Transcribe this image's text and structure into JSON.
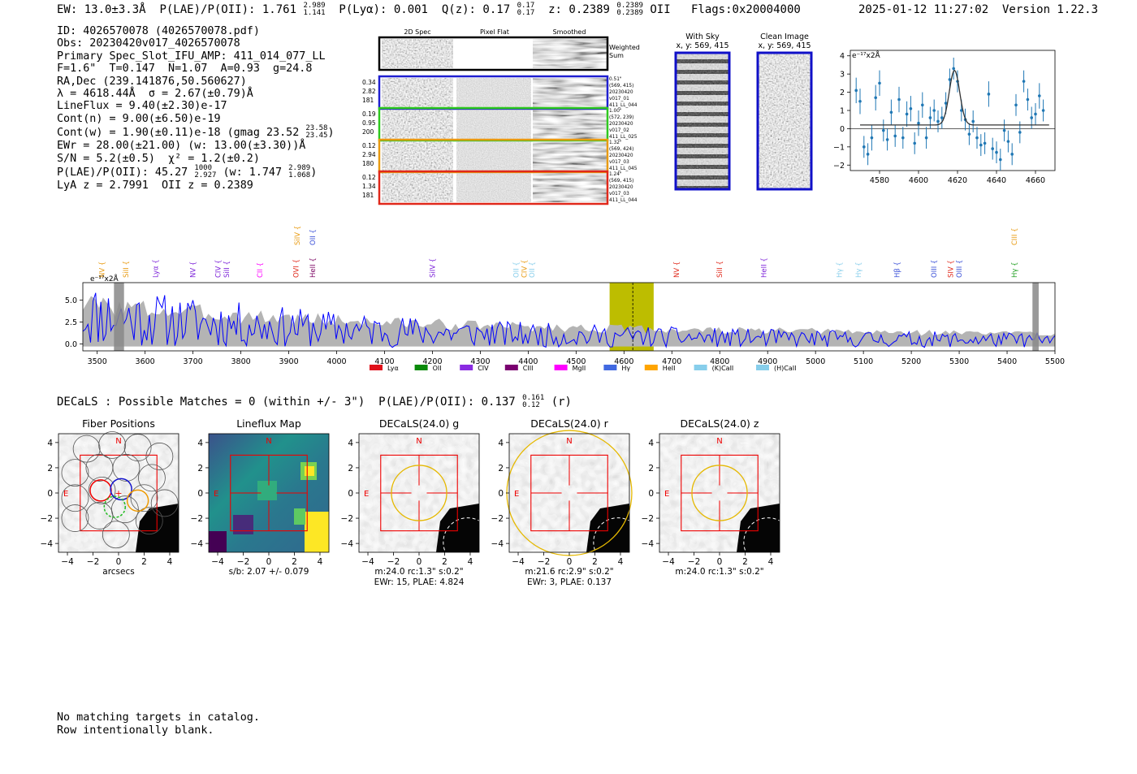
{
  "header": {
    "ew": "EW: 13.0±3.3Å",
    "plae_poii": "P(LAE)/P(OII): 1.761",
    "plae_poii_hi": "2.989",
    "plae_poii_lo": "1.141",
    "plya": "P(Lyα): 0.001",
    "qz": "Q(z): 0.17",
    "qz_hi": "0.17",
    "qz_lo": "0.17",
    "z": "z: 0.2389",
    "z_hi": "0.2389",
    "z_lo": "0.2389",
    "line": "OII",
    "flags": "Flags:0x20004000",
    "timestamp": "2025-01-12 11:27:02  Version 1.22.3"
  },
  "info": {
    "id": "ID: 4026570078 (4026570078.pdf)",
    "obs": "Obs: 20230420v017_4026570078",
    "primary": "Primary Spec_Slot_IFU_AMP: 411_014_077_LL",
    "fiber": "F=1.6\"  T=0.147  N=1.07  A=0.93  g=24.8",
    "radec": "RA,Dec (239.141876,50.560627)",
    "lambda": "λ = 4618.44Å  σ = 2.67(±0.79)Å",
    "lineflux": "LineFlux = 9.40(±2.30)e-17",
    "contn": "Cont(n) = 9.00(±6.50)e-19",
    "contw": "Cont(w) = 1.90(±0.11)e-18 (gmag 23.52",
    "contw_hi": "23.58",
    "contw_lo": "23.45",
    "ewr": "EWr = 28.00(±21.00) (w: 13.00(±3.30))Å",
    "sn": "S/N = 5.2(±0.5)  χ² = 1.2(±0.2)",
    "plae": "P(LAE)/P(OII): 45.27",
    "plae_hi": "1000",
    "plae_lo": "2.927",
    "plae_w": "(w: 1.747",
    "plae_w_hi": "2.989",
    "plae_w_lo": "1.068",
    "lya": "LyA z = 2.7991  OII z = 0.2389"
  },
  "cutouts": {
    "col_2d": "2D Spec",
    "col_flat": "Pixel Flat",
    "col_smooth": "Smoothed",
    "weighted": "Weighted",
    "sum": "Sum",
    "rows": [
      {
        "w1": "0.34",
        "w2": "2.82",
        "w3": "181",
        "color": "#1f1fd0",
        "info": [
          "0.51\"",
          "(569, 415)",
          "20230420",
          "v017_01",
          "411_LL_044"
        ]
      },
      {
        "w1": "0.19",
        "w2": "0.95",
        "w3": "200",
        "color": "#2fc81f",
        "info": [
          "1.00\"",
          "(572, 239)",
          "20230420",
          "v017_02",
          "411_LL_025"
        ]
      },
      {
        "w1": "0.12",
        "w2": "2.94",
        "w3": "180",
        "color": "#e89a10",
        "info": [
          "1.32\"",
          "(569, 424)",
          "20230420",
          "v017_03",
          "411_LL_045"
        ]
      },
      {
        "w1": "0.12",
        "w2": "1.34",
        "w3": "181",
        "color": "#e0281a",
        "info": [
          "1.24\"",
          "(569, 415)",
          "20230420",
          "v017_03",
          "411_LL_044"
        ]
      }
    ],
    "with_sky": "With Sky",
    "with_sky_xy": "x, y: 569, 415",
    "clean": "Clean Image",
    "clean_xy": "x, y: 569, 415"
  },
  "zoom_plot": {
    "unit": "e⁻¹⁷x2Å",
    "xticks": [
      "4580",
      "4600",
      "4620",
      "4640",
      "4660"
    ],
    "yticks": [
      "4",
      "3",
      "2",
      "1",
      "0",
      "−1",
      "−2"
    ]
  },
  "chart_data": [
    {
      "type": "scatter",
      "title": "",
      "unit_label": "e⁻¹⁷x2Å",
      "xlim": [
        4565,
        4670
      ],
      "ylim": [
        -2.3,
        4.3
      ],
      "points": [
        {
          "x": 4568,
          "y": 2.1,
          "err": 0.7
        },
        {
          "x": 4570,
          "y": 1.5,
          "err": 0.7
        },
        {
          "x": 4572,
          "y": -1.0,
          "err": 0.6
        },
        {
          "x": 4574,
          "y": -1.4,
          "err": 0.6
        },
        {
          "x": 4576,
          "y": -0.5,
          "err": 0.7
        },
        {
          "x": 4578,
          "y": 1.7,
          "err": 0.7
        },
        {
          "x": 4580,
          "y": 2.5,
          "err": 0.7
        },
        {
          "x": 4582,
          "y": -0.1,
          "err": 0.6
        },
        {
          "x": 4584,
          "y": -0.6,
          "err": 0.6
        },
        {
          "x": 4586,
          "y": 0.9,
          "err": 0.7
        },
        {
          "x": 4588,
          "y": -0.4,
          "err": 0.6
        },
        {
          "x": 4590,
          "y": 1.6,
          "err": 0.7
        },
        {
          "x": 4592,
          "y": -0.5,
          "err": 0.6
        },
        {
          "x": 4594,
          "y": 0.8,
          "err": 0.7
        },
        {
          "x": 4596,
          "y": 1.1,
          "err": 0.7
        },
        {
          "x": 4598,
          "y": -0.8,
          "err": 0.6
        },
        {
          "x": 4600,
          "y": 0.3,
          "err": 0.7
        },
        {
          "x": 4602,
          "y": 1.3,
          "err": 0.7
        },
        {
          "x": 4604,
          "y": -0.5,
          "err": 0.6
        },
        {
          "x": 4606,
          "y": 0.6,
          "err": 0.6
        },
        {
          "x": 4608,
          "y": 1.0,
          "err": 0.6
        },
        {
          "x": 4610,
          "y": 0.4,
          "err": 0.6
        },
        {
          "x": 4612,
          "y": 0.6,
          "err": 0.6
        },
        {
          "x": 4614,
          "y": 1.4,
          "err": 0.6
        },
        {
          "x": 4616,
          "y": 2.7,
          "err": 0.6
        },
        {
          "x": 4618,
          "y": 3.3,
          "err": 0.6
        },
        {
          "x": 4620,
          "y": 2.6,
          "err": 0.6
        },
        {
          "x": 4622,
          "y": 1.0,
          "err": 0.6
        },
        {
          "x": 4624,
          "y": 0.5,
          "err": 0.6
        },
        {
          "x": 4626,
          "y": -0.3,
          "err": 0.6
        },
        {
          "x": 4628,
          "y": 0.4,
          "err": 0.6
        },
        {
          "x": 4630,
          "y": -0.5,
          "err": 0.6
        },
        {
          "x": 4632,
          "y": -0.9,
          "err": 0.6
        },
        {
          "x": 4634,
          "y": -0.8,
          "err": 0.6
        },
        {
          "x": 4636,
          "y": 1.9,
          "err": 0.7
        },
        {
          "x": 4638,
          "y": -1.1,
          "err": 0.6
        },
        {
          "x": 4640,
          "y": -1.3,
          "err": 0.6
        },
        {
          "x": 4642,
          "y": -1.7,
          "err": 0.6
        },
        {
          "x": 4644,
          "y": -0.1,
          "err": 0.6
        },
        {
          "x": 4646,
          "y": -0.7,
          "err": 0.6
        },
        {
          "x": 4648,
          "y": -1.4,
          "err": 0.6
        },
        {
          "x": 4650,
          "y": 1.3,
          "err": 0.6
        },
        {
          "x": 4652,
          "y": -0.2,
          "err": 0.6
        },
        {
          "x": 4654,
          "y": 2.6,
          "err": 0.6
        },
        {
          "x": 4656,
          "y": 1.6,
          "err": 0.6
        },
        {
          "x": 4658,
          "y": 0.6,
          "err": 0.6
        },
        {
          "x": 4660,
          "y": 0.8,
          "err": 0.6
        },
        {
          "x": 4662,
          "y": 1.8,
          "err": 0.7
        },
        {
          "x": 4664,
          "y": 1.0,
          "err": 0.6
        }
      ],
      "fit": {
        "center": 4618.44,
        "sigma": 2.67,
        "amp": 3.0,
        "baseline": 0.2,
        "x_start": 4570,
        "x_end": 4667
      }
    },
    {
      "type": "line",
      "title": "",
      "unit_label": "e⁻¹⁷x2Å",
      "xlim": [
        3470,
        5500
      ],
      "ylim": [
        -0.8,
        7.0
      ],
      "xticks": [
        3500,
        3600,
        3700,
        3800,
        3900,
        4000,
        4100,
        4200,
        4300,
        4400,
        4500,
        4600,
        4700,
        4800,
        4900,
        5000,
        5100,
        5200,
        5300,
        5400,
        5500
      ],
      "yticks": [
        0.0,
        2.5,
        5.0
      ],
      "highlight_band": [
        4570,
        4662
      ],
      "line_marker": 4618.44,
      "masked_regions": [
        [
          3535,
          3556
        ],
        [
          5453,
          5466
        ]
      ],
      "series": [
        {
          "color": "#0000ff",
          "seed": 11,
          "start": 3470,
          "end": 5500,
          "n": 380,
          "base": 1.4,
          "amp": 6.2,
          "decay": 650
        },
        {
          "color": "#b4b4b4",
          "seed": 3,
          "start": 3470,
          "end": 5500,
          "n": 240,
          "base": 1.3,
          "amp": 4.6,
          "decay": 700
        }
      ],
      "line_labels": [
        {
          "text": "NV",
          "x": 3510,
          "row": 2,
          "color": "#e89a10"
        },
        {
          "text": "SiII",
          "x": 3560,
          "row": 2,
          "color": "#e89a10"
        },
        {
          "text": "Lyα",
          "x": 3622,
          "row": 2,
          "color": "#7b20d8"
        },
        {
          "text": "NV",
          "x": 3700,
          "row": 2,
          "color": "#7b20d8"
        },
        {
          "text": "CIV",
          "x": 3752,
          "row": 2,
          "color": "#7b20d8"
        },
        {
          "text": "SiII",
          "x": 3770,
          "row": 2,
          "color": "#7b20d8"
        },
        {
          "text": "CII",
          "x": 3840,
          "row": 2,
          "color": "#ff00ff"
        },
        {
          "text": "SiIV",
          "x": 3918,
          "row": 1,
          "color": "#e89a10"
        },
        {
          "text": "OII",
          "x": 3950,
          "row": 1,
          "color": "#3a50d8"
        },
        {
          "text": "OVI",
          "x": 3915,
          "row": 2,
          "color": "#e0281a"
        },
        {
          "text": "HeII",
          "x": 3950,
          "row": 2,
          "color": "#7a0060"
        },
        {
          "text": "SiIV",
          "x": 4200,
          "row": 2,
          "color": "#7b20d8"
        },
        {
          "text": "OII",
          "x": 4375,
          "row": 2,
          "color": "#87ceeb"
        },
        {
          "text": "CIV",
          "x": 4392,
          "row": 2,
          "color": "#e89a10"
        },
        {
          "text": "OII",
          "x": 4408,
          "row": 2,
          "color": "#87ceeb"
        },
        {
          "text": "NV",
          "x": 4710,
          "row": 2,
          "color": "#e0281a"
        },
        {
          "text": "SiII",
          "x": 4800,
          "row": 2,
          "color": "#e0281a"
        },
        {
          "text": "HeII",
          "x": 4892,
          "row": 2,
          "color": "#7b20d8"
        },
        {
          "text": "Hγ",
          "x": 5050,
          "row": 2,
          "color": "#87ceeb"
        },
        {
          "text": "Hγ",
          "x": 5090,
          "row": 2,
          "color": "#87ceeb"
        },
        {
          "text": "Hβ",
          "x": 5170,
          "row": 2,
          "color": "#3a50d8"
        },
        {
          "text": "OIII",
          "x": 5247,
          "row": 2,
          "color": "#3a50d8"
        },
        {
          "text": "SIV",
          "x": 5282,
          "row": 2,
          "color": "#e0281a"
        },
        {
          "text": "OIII",
          "x": 5300,
          "row": 2,
          "color": "#3a50d8"
        },
        {
          "text": "CIII",
          "x": 5415,
          "row": 1,
          "color": "#e89a10"
        },
        {
          "text": "Hγ",
          "x": 5415,
          "row": 2,
          "color": "#1f9e1f"
        }
      ],
      "legend": [
        {
          "label": "Lyα",
          "color": "#e0101a"
        },
        {
          "label": "OII",
          "color": "#0a8a0a"
        },
        {
          "label": "CIV",
          "color": "#8a2be2"
        },
        {
          "label": "CIII",
          "color": "#7a0070"
        },
        {
          "label": "MgII",
          "color": "#ff00ff"
        },
        {
          "label": "Hγ",
          "color": "#4169e1"
        },
        {
          "label": "HeII",
          "color": "#ffa500"
        },
        {
          "label": "(K)CaII",
          "color": "#87ceeb"
        },
        {
          "label": "(H)CaII",
          "color": "#87ceeb"
        }
      ]
    }
  ],
  "decals": {
    "line": "DECaLS : Possible Matches = 0 (within +/- 3\")  P(LAE)/P(OII): 0.137",
    "hi": "0.161",
    "lo": "0.12",
    "band": "(r)",
    "panels": [
      {
        "title": "Fiber Positions",
        "cap1": "arcsecs",
        "cap2": "",
        "kind": "fiber"
      },
      {
        "title": "Lineflux Map",
        "cap1": "s/b: 2.07 +/- 0.079",
        "cap2": "",
        "kind": "flux"
      },
      {
        "title": "DECaLS(24.0) g",
        "cap1": "m:24.0 rc:1.3\"  s:0.2\"",
        "cap2": "EWr: 15, PLAE: 4.824",
        "kind": "img",
        "ring": 0.23
      },
      {
        "title": "DECaLS(24.0) r",
        "cap1": "m:21.6 rc:2.9\"  s:0.2\"",
        "cap2": "EWr: 3, PLAE: 0.137",
        "kind": "img",
        "ring": 0.52
      },
      {
        "title": "DECaLS(24.0) z",
        "cap1": "m:24.0 rc:1.3\"  s:0.2\"",
        "cap2": "",
        "kind": "img",
        "ring": 0.23
      }
    ],
    "ticks": [
      "−4",
      "−2",
      "0",
      "2",
      "4"
    ],
    "north": "N",
    "east": "E"
  },
  "footer": {
    "line1": "No matching targets in catalog.",
    "line2": "Row intentionally blank."
  }
}
